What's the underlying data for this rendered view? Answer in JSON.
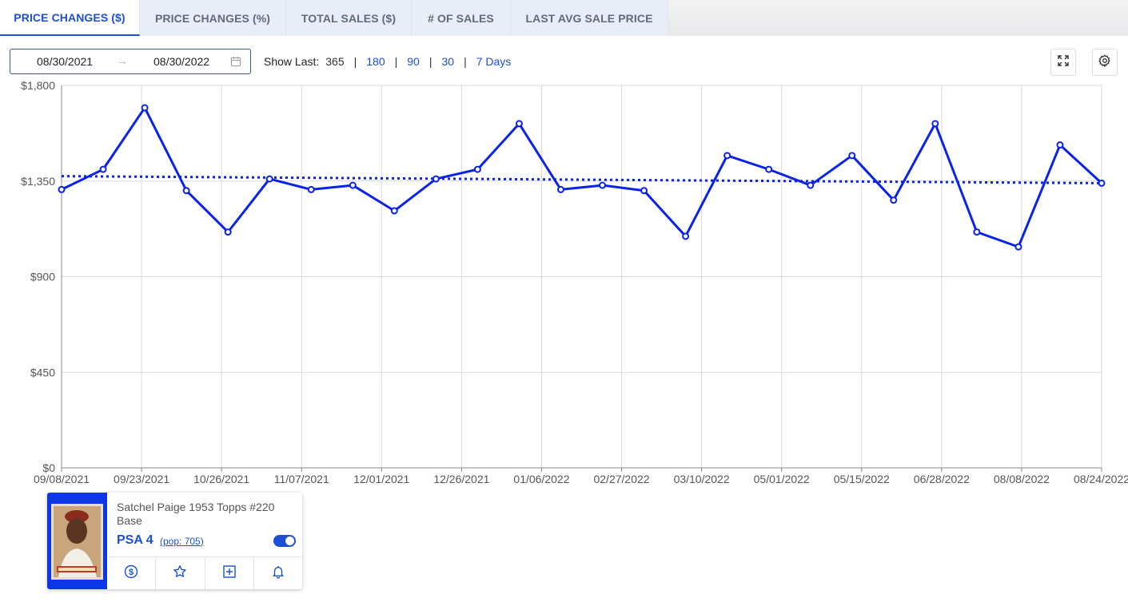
{
  "tabs": [
    {
      "label": "PRICE CHANGES ($)",
      "active": true
    },
    {
      "label": "PRICE CHANGES (%)",
      "active": false
    },
    {
      "label": "TOTAL SALES ($)",
      "active": false
    },
    {
      "label": "# OF SALES",
      "active": false
    },
    {
      "label": "LAST AVG SALE PRICE",
      "active": false
    }
  ],
  "toolbar": {
    "start_date": "08/30/2021",
    "end_date": "08/30/2022",
    "range_arrow": "→",
    "show_last_label": "Show Last:",
    "show_last_options": [
      "365",
      "180",
      "90",
      "30",
      "7 Days"
    ],
    "show_last_current": "365",
    "separator": "|"
  },
  "colors": {
    "accent": "#1a4fd6",
    "series": "#0b22e8",
    "grid": "#d9d9d9"
  },
  "icons": {
    "date": "calendar-icon",
    "fullscreen": "expand-icon",
    "settings": "gear-icon"
  },
  "chart_data": {
    "type": "line",
    "ylim": [
      0,
      1800
    ],
    "yticks": [
      0,
      450,
      900,
      1350,
      1800
    ],
    "ytick_labels": [
      "$0",
      "$450",
      "$900",
      "$1,350",
      "$1,800"
    ],
    "xtick_labels": [
      "09/08/2021",
      "09/23/2021",
      "10/26/2021",
      "11/07/2021",
      "12/01/2021",
      "12/26/2021",
      "01/06/2022",
      "02/27/2022",
      "03/10/2022",
      "05/01/2022",
      "05/15/2022",
      "06/28/2022",
      "08/08/2022",
      "08/24/2022"
    ],
    "grid": true,
    "series": [
      {
        "style": "solid",
        "values": [
          1310,
          1405,
          1695,
          1305,
          1110,
          1360,
          1310,
          1330,
          1210,
          1360,
          1405,
          1620,
          1310,
          1330,
          1305,
          1090,
          1470,
          1405,
          1330,
          1470,
          1260,
          1620,
          1110,
          1040,
          1520,
          1340
        ]
      },
      {
        "style": "dotted",
        "kind": "trend",
        "values": [
          1373,
          1340
        ]
      }
    ]
  },
  "card": {
    "title": "Satchel Paige 1953 Topps #220 Base",
    "grade": "PSA 4",
    "pop_open": "(",
    "pop": "pop: 705",
    "pop_close": ")",
    "toggle_on": true,
    "actions": [
      "dollar-icon",
      "star-icon",
      "add-box-icon",
      "bell-icon"
    ]
  }
}
